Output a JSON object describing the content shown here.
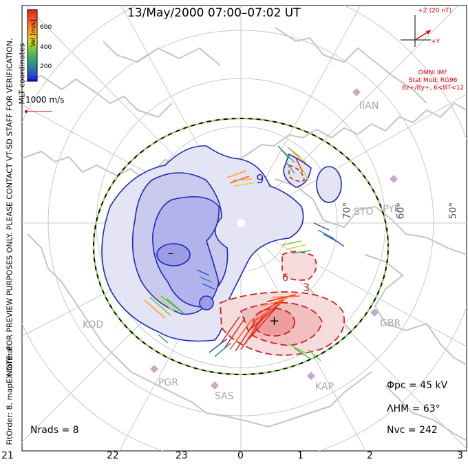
{
  "header": {
    "title": "13/May/2000 07:00–07:02 UT"
  },
  "imf": {
    "scale_label": "+Z (20 nT)",
    "y_label": "+Y",
    "source": "OMNI IMF",
    "model": "Stat Mod: RG96",
    "condition": "Bz+/By+, 6<BT<12",
    "color": "#e00000"
  },
  "colorbar": {
    "title": "Vel [m/s]",
    "ticks": [
      "600",
      "400",
      "200"
    ],
    "colors": [
      "#e02020",
      "#ff5a1e",
      "#ffa028",
      "#d0dc28",
      "#78c83c",
      "#3cb464",
      "#2e8a90",
      "#3050c8",
      "#0a14e6"
    ]
  },
  "velocity_scale": {
    "label": "1000 m/s"
  },
  "side_notes": {
    "coordinates": "MLT coordinates",
    "preview_note": "NOTE: FOR PREVIEW PURPOSES ONLY. PLEASE CONTACT VT-SD STAFF FOR VERIFICATION.",
    "fit_info": "FitOrder: 8, mapEX format"
  },
  "stats": {
    "potential": "Φpc = 45 kV",
    "hm_boundary": "ΛHM = 63°",
    "vectors": "Nvc = 242",
    "radars": "Nrads = 8"
  },
  "mlt_labels": [
    "21",
    "22",
    "23",
    "0",
    "1",
    "2",
    "3"
  ],
  "latitude_labels": [
    "70°",
    "60°",
    "50°"
  ],
  "stations": [
    "IIAN",
    "STO",
    "PYK",
    "KOD",
    "PGR",
    "SAS",
    "KAP",
    "GBR"
  ],
  "contour_labels": [
    "9",
    "6",
    "3"
  ],
  "extrema": {
    "minimum": "–",
    "maximum": "+"
  }
}
